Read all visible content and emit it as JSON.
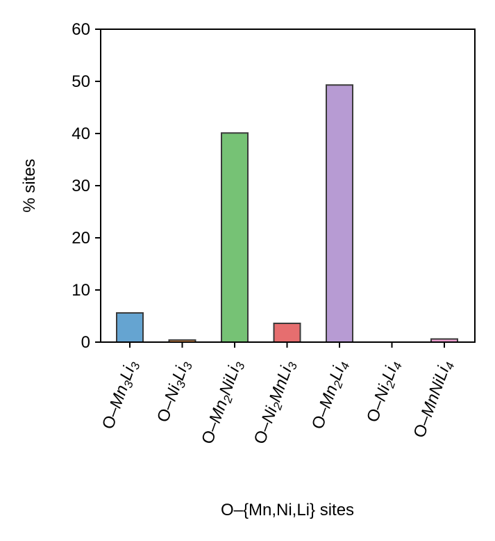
{
  "chart_data": {
    "type": "bar",
    "title": "",
    "xlabel": "O–{Mn,Ni,Li} sites",
    "ylabel": "% sites",
    "ylim": [
      0,
      60
    ],
    "yticks": [
      0,
      10,
      20,
      30,
      40,
      50,
      60
    ],
    "grid": false,
    "categories": [
      {
        "prefix": "O–",
        "parts": [
          [
            "Mn",
            ""
          ],
          [
            "3",
            "sub"
          ],
          [
            "Li",
            ""
          ],
          [
            "3",
            "sub"
          ]
        ]
      },
      {
        "prefix": "O–",
        "parts": [
          [
            "Ni",
            ""
          ],
          [
            "3",
            "sub"
          ],
          [
            "Li",
            ""
          ],
          [
            "3",
            "sub"
          ]
        ]
      },
      {
        "prefix": "O–",
        "parts": [
          [
            "Mn",
            ""
          ],
          [
            "2",
            "sub"
          ],
          [
            "NiLi",
            ""
          ],
          [
            "3",
            "sub"
          ]
        ]
      },
      {
        "prefix": "O–",
        "parts": [
          [
            "Ni",
            ""
          ],
          [
            "2",
            "sub"
          ],
          [
            "MnLi",
            ""
          ],
          [
            "3",
            "sub"
          ]
        ]
      },
      {
        "prefix": "O–",
        "parts": [
          [
            "Mn",
            ""
          ],
          [
            "2",
            "sub"
          ],
          [
            "Li",
            ""
          ],
          [
            "4",
            "sub"
          ]
        ]
      },
      {
        "prefix": "O–",
        "parts": [
          [
            "Ni",
            ""
          ],
          [
            "2",
            "sub"
          ],
          [
            "Li",
            ""
          ],
          [
            "4",
            "sub"
          ]
        ]
      },
      {
        "prefix": "O–",
        "parts": [
          [
            "MnNiLi",
            ""
          ],
          [
            "4",
            "sub"
          ]
        ]
      }
    ],
    "category_text": [
      "O–Mn3Li3",
      "O–Ni3Li3",
      "O–Mn2NiLi3",
      "O–Ni2MnLi3",
      "O–Mn2Li4",
      "O–Ni2Li4",
      "O–MnNiLi4"
    ],
    "values": [
      5.6,
      0.4,
      40.1,
      3.6,
      49.3,
      0.0,
      0.6
    ],
    "colors": [
      "#65a4d1",
      "#f59a4e",
      "#76c275",
      "#e66e6f",
      "#b79bd3",
      "#a07a6e",
      "#ec9fce"
    ],
    "edge_color": "#3a3a3a"
  }
}
